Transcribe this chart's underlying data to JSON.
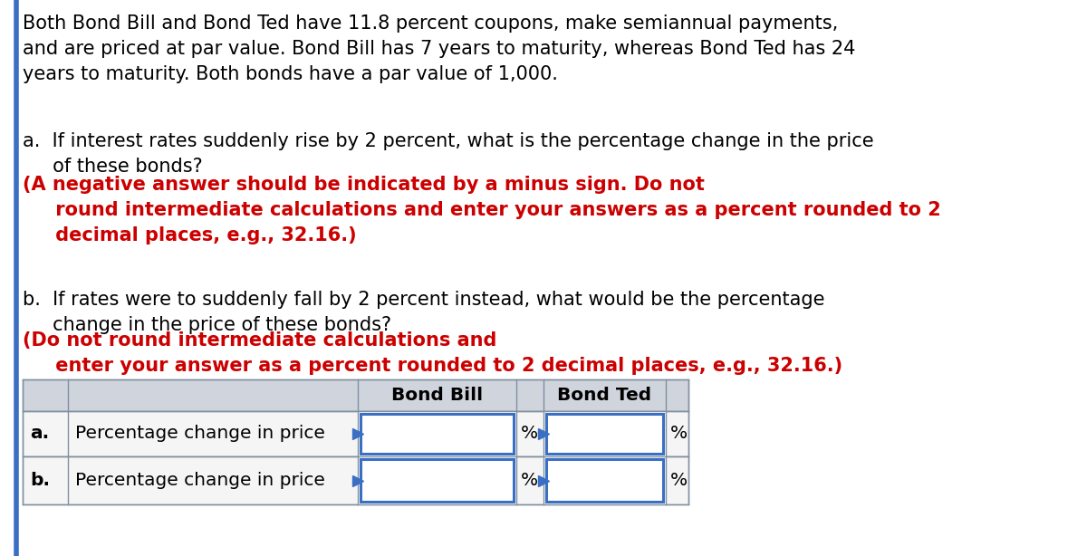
{
  "background_color": "#ffffff",
  "left_border_color": "#3a6fc4",
  "paragraph1": "Both Bond Bill and Bond Ted have 11.8 percent coupons, make semiannual payments,\nand are priced at par value. Bond Bill has 7 years to maturity, whereas Bond Ted has 24\nyears to maturity. Both bonds have a par value of 1,000.",
  "para_a_black": "a.  If interest rates suddenly rise by 2 percent, what is the percentage change in the price\n     of these bonds? ",
  "para_a_red": "(A negative answer should be indicated by a minus sign. Do not\n     round intermediate calculations and enter your answers as a percent rounded to 2\n     decimal places, e.g., 32.16.)",
  "para_b_black": "b.  If rates were to suddenly fall by 2 percent instead, what would be the percentage\n     change in the price of these bonds? ",
  "para_b_red": "(Do not round intermediate calculations and\n     enter your answer as a percent rounded to 2 decimal places, e.g., 32.16.)",
  "table_header_bg": "#d0d4dd",
  "table_row_bg": "#f5f5f5",
  "table_input_border": "#3a6fc4",
  "table_border_color": "#8090a0",
  "col_label_a": "a.",
  "col_label_b": "b.",
  "col_desc_a": "Percentage change in price",
  "col_desc_b": "Percentage change in price",
  "header_bill": "Bond Bill",
  "header_ted": "Bond Ted",
  "percent": "%",
  "font_size_body": 15.0,
  "font_size_table": 14.5
}
